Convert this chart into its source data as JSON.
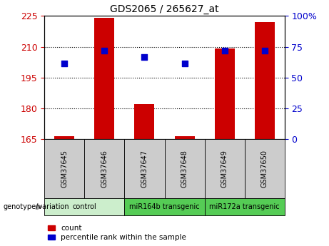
{
  "title": "GDS2065 / 265627_at",
  "samples": [
    "GSM37645",
    "GSM37646",
    "GSM37647",
    "GSM37648",
    "GSM37649",
    "GSM37650"
  ],
  "count_values": [
    166.5,
    224.0,
    182.0,
    166.5,
    209.0,
    222.0
  ],
  "percentile_values": [
    202.0,
    208.0,
    205.0,
    202.0,
    208.0,
    208.0
  ],
  "ylim": [
    165,
    225
  ],
  "yticks": [
    165,
    180,
    195,
    210,
    225
  ],
  "right_yticks": [
    0,
    25,
    50,
    75,
    100
  ],
  "bar_color": "#cc0000",
  "dot_color": "#0000cc",
  "bar_width": 0.5,
  "dot_size": 35,
  "background_color": "#ffffff",
  "legend_count_label": "count",
  "legend_pct_label": "percentile rank within the sample",
  "genotype_label": "genotype/variation",
  "tick_label_color_left": "#cc0000",
  "tick_label_color_right": "#0000cc",
  "group_configs": [
    {
      "label": "control",
      "start": 0,
      "end": 2,
      "color": "#cceecc"
    },
    {
      "label": "miR164b transgenic",
      "start": 2,
      "end": 4,
      "color": "#55cc55"
    },
    {
      "label": "miR172a transgenic",
      "start": 4,
      "end": 6,
      "color": "#55cc55"
    }
  ],
  "sample_box_color": "#cccccc"
}
